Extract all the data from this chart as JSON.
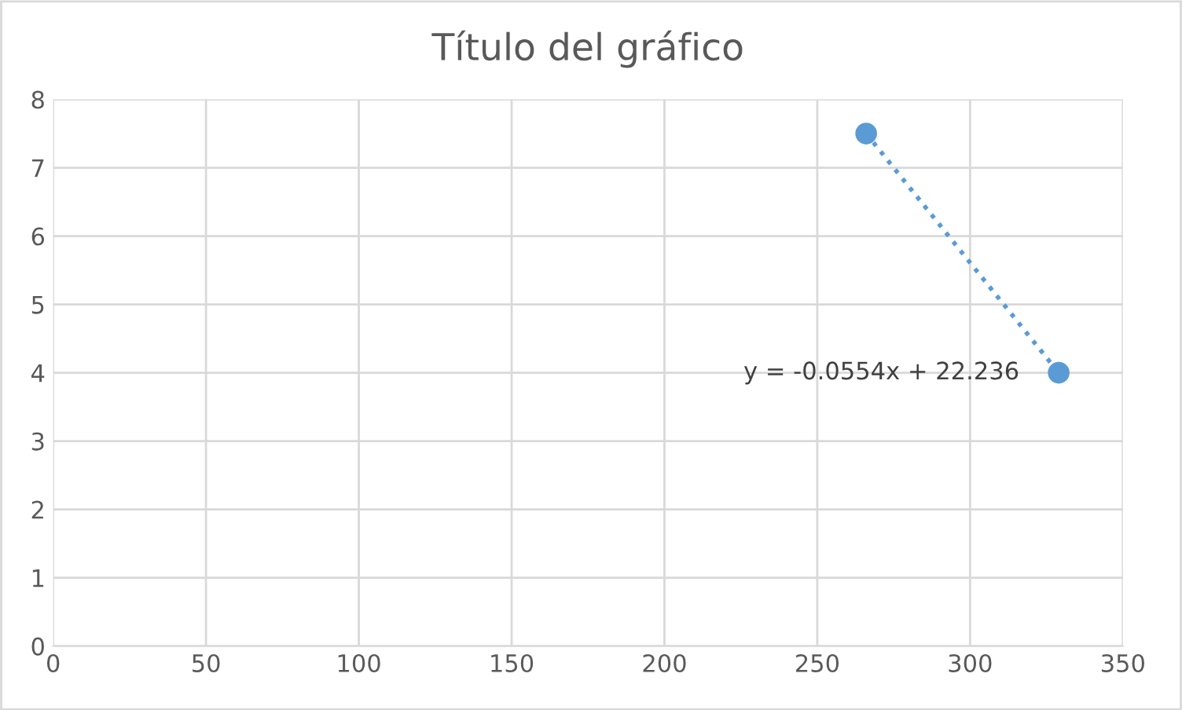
{
  "chart_data": {
    "type": "scatter",
    "title": "Título del gráfico",
    "x": [
      266,
      329
    ],
    "series": [
      {
        "color": "#5b9bd5",
        "values": [
          7.5,
          4.0
        ],
        "marker": "circle"
      },
      {
        "type": "line",
        "color": "#5b9bd5",
        "values": [
          7.5,
          4.0
        ],
        "line_style": "dotted"
      }
    ],
    "annotations": [
      {
        "text": "y = -0.0554x + 22.236",
        "x": 329,
        "y": 4.0
      }
    ],
    "xlim": [
      0,
      350
    ],
    "xticks": [
      0,
      50,
      100,
      150,
      200,
      250,
      300,
      350
    ],
    "ylim": [
      0,
      8
    ],
    "yticks": [
      0,
      1,
      2,
      3,
      4,
      5,
      6,
      7,
      8
    ],
    "grid": true
  }
}
